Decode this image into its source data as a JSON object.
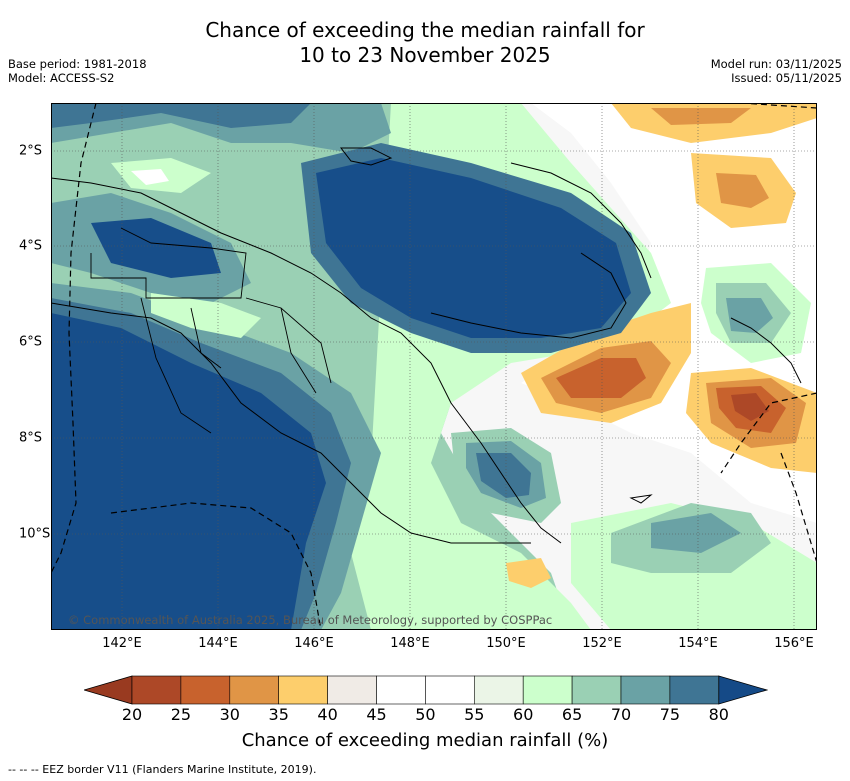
{
  "title": {
    "line1": "Chance of exceeding the median rainfall for",
    "line2": "10 to 23 November 2025"
  },
  "meta": {
    "base_period": "Base period: 1981-2018",
    "model": "Model: ACCESS-S2",
    "model_run": "Model run: 03/11/2025",
    "issued": "Issued: 05/11/2025"
  },
  "map": {
    "x_ticks": [
      "142°E",
      "144°E",
      "146°E",
      "148°E",
      "150°E",
      "152°E",
      "154°E",
      "156°E"
    ],
    "y_ticks": [
      "2°S",
      "4°S",
      "6°S",
      "8°S",
      "10°S"
    ],
    "copyright": "© Commonwealth of Australia 2025, Bureau of Meteorology, supported by COSPPac",
    "region": "Papua New Guinea"
  },
  "colorbar": {
    "ticks": [
      "20",
      "25",
      "30",
      "35",
      "40",
      "45",
      "50",
      "55",
      "60",
      "65",
      "70",
      "75",
      "80"
    ],
    "colors": [
      "#ad4827",
      "#c8622d",
      "#e09546",
      "#fdce6c",
      "#f0ebe6",
      "#ffffff",
      "#ffffff",
      "#ebf5e7",
      "#ccffcc",
      "#9ad0b4",
      "#6aa2a5",
      "#3f7594",
      "#174e8a"
    ],
    "under_color": "#993a20",
    "over_color": "#154a87",
    "label": "Chance of exceeding median rainfall (%)"
  },
  "footer": "--  --  -- EEZ border V11 (Flanders Marine Institute, 2019)."
}
